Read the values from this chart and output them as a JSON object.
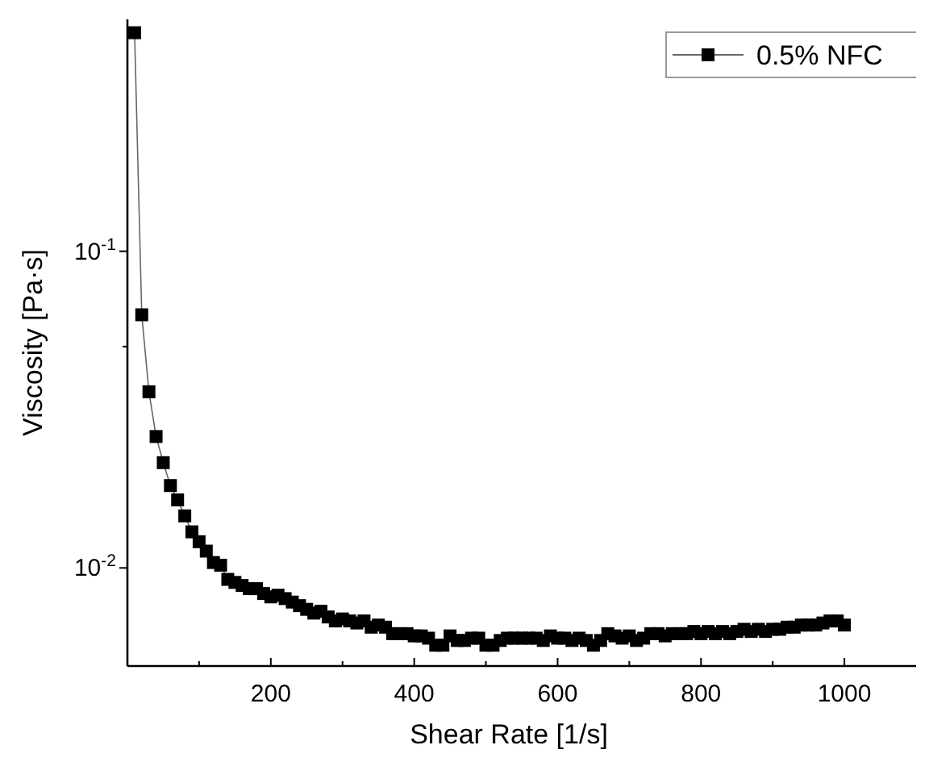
{
  "chart_data": {
    "type": "line",
    "xlabel": "Shear Rate [1/s]",
    "ylabel": "Viscosity [Pa·s]",
    "log": "y",
    "xlim": [
      0,
      1100
    ],
    "ylim": [
      0.0049,
      0.54
    ],
    "xticks": [
      {
        "value": 100,
        "label": null
      },
      200,
      {
        "value": 300,
        "label": null
      },
      400,
      {
        "value": 500,
        "label": null
      },
      600,
      {
        "value": 700,
        "label": null
      },
      800,
      {
        "value": 900,
        "label": null
      },
      1000
    ],
    "yticks": [
      {
        "value": 0.01,
        "label": "10$^{-2}$"
      },
      {
        "value": 0.05,
        "label": null
      },
      {
        "value": 0.1,
        "label": "10$^{-1}$"
      }
    ],
    "marker": "square",
    "legend": "top right",
    "grid": false,
    "series": [
      {
        "name": "0.5% NFC",
        "color": "#000000",
        "x": [
          10,
          20,
          30,
          40,
          50,
          60,
          70,
          80,
          90,
          100,
          110,
          120,
          130,
          140,
          150,
          160,
          170,
          180,
          190,
          200,
          210,
          220,
          230,
          240,
          250,
          260,
          270,
          280,
          290,
          300,
          310,
          320,
          330,
          340,
          350,
          360,
          370,
          380,
          390,
          400,
          410,
          420,
          430,
          440,
          450,
          460,
          470,
          480,
          490,
          500,
          510,
          520,
          530,
          540,
          550,
          560,
          570,
          580,
          590,
          600,
          610,
          620,
          630,
          640,
          650,
          660,
          670,
          680,
          690,
          700,
          710,
          720,
          730,
          740,
          750,
          760,
          770,
          780,
          790,
          800,
          810,
          820,
          830,
          840,
          850,
          860,
          870,
          880,
          890,
          900,
          910,
          920,
          930,
          940,
          950,
          960,
          970,
          980,
          990,
          1000
        ],
        "values": [
          0.49,
          0.063,
          0.036,
          0.026,
          0.0215,
          0.0182,
          0.0164,
          0.0146,
          0.013,
          0.0121,
          0.0113,
          0.0104,
          0.0102,
          0.0092,
          0.009,
          0.0088,
          0.0086,
          0.0086,
          0.0083,
          0.0081,
          0.0082,
          0.008,
          0.0078,
          0.0076,
          0.0074,
          0.0072,
          0.0073,
          0.007,
          0.0068,
          0.0069,
          0.0068,
          0.0067,
          0.0068,
          0.0065,
          0.0066,
          0.0065,
          0.0062,
          0.0062,
          0.0062,
          0.0061,
          0.0061,
          0.006,
          0.0057,
          0.0057,
          0.0061,
          0.0059,
          0.0059,
          0.006,
          0.006,
          0.0057,
          0.0057,
          0.0059,
          0.006,
          0.006,
          0.006,
          0.006,
          0.006,
          0.0059,
          0.0061,
          0.006,
          0.006,
          0.0059,
          0.006,
          0.0059,
          0.0057,
          0.0059,
          0.0062,
          0.0061,
          0.006,
          0.0061,
          0.0059,
          0.006,
          0.0062,
          0.0062,
          0.0061,
          0.0062,
          0.0062,
          0.0062,
          0.0063,
          0.0062,
          0.0063,
          0.0062,
          0.0063,
          0.0062,
          0.0063,
          0.0064,
          0.0063,
          0.0064,
          0.0063,
          0.0064,
          0.0064,
          0.0065,
          0.0065,
          0.0066,
          0.0066,
          0.0066,
          0.0067,
          0.0068,
          0.0068,
          0.0066
        ]
      }
    ]
  }
}
